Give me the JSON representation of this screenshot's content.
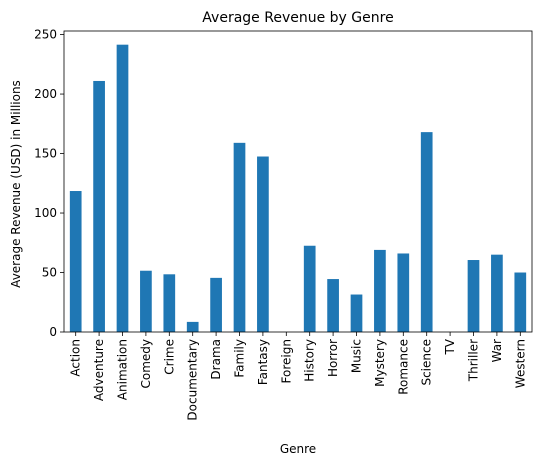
{
  "chart_data": {
    "type": "bar",
    "title": "Average Revenue by Genre",
    "xlabel": "Genre",
    "ylabel": "Average Revenue (USD) in Millions",
    "categories": [
      "Action",
      "Adventure",
      "Animation",
      "Comedy",
      "Crime",
      "Documentary",
      "Drama",
      "Family",
      "Fantasy",
      "Foreign",
      "History",
      "Horror",
      "Music",
      "Mystery",
      "Romance",
      "Science",
      "TV",
      "Thriller",
      "War",
      "Western"
    ],
    "values": [
      118.5,
      211,
      241.5,
      51.5,
      48.5,
      8.5,
      45.5,
      159,
      147.5,
      0,
      72.5,
      44.5,
      31.5,
      69,
      66,
      168,
      0,
      60.5,
      65,
      50
    ],
    "ylim": [
      0,
      253
    ],
    "yticks": [
      0,
      50,
      100,
      150,
      200,
      250
    ],
    "grid": false,
    "bar_color": "#1f77b4"
  }
}
